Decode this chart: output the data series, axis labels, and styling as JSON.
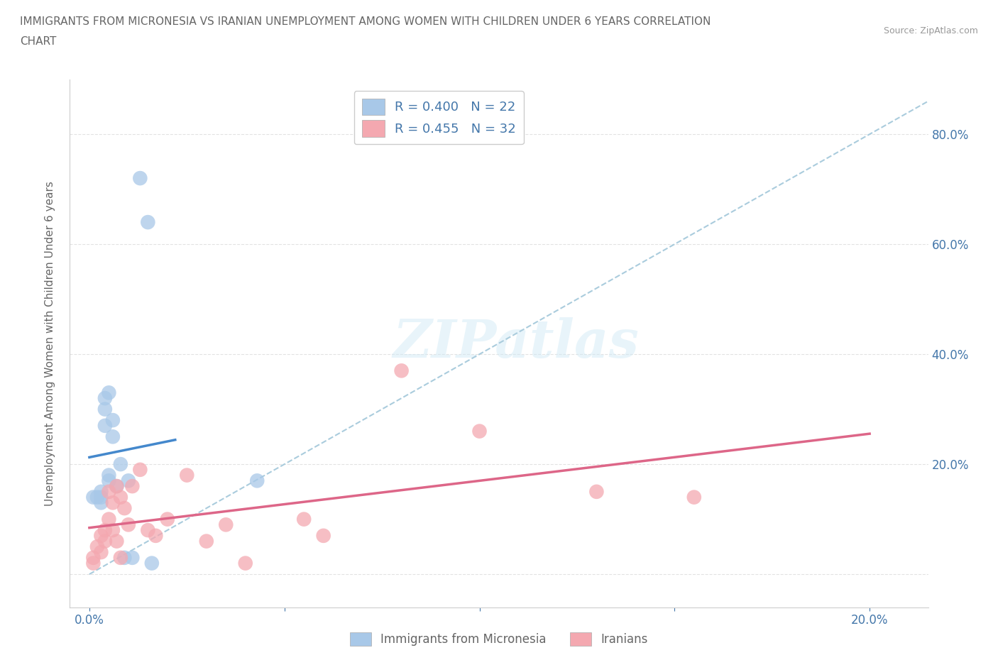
{
  "title_line1": "IMMIGRANTS FROM MICRONESIA VS IRANIAN UNEMPLOYMENT AMONG WOMEN WITH CHILDREN UNDER 6 YEARS CORRELATION",
  "title_line2": "CHART",
  "source": "Source: ZipAtlas.com",
  "watermark": "ZIPatlas",
  "ylabel": "Unemployment Among Women with Children Under 6 years",
  "xticks": [
    0.0,
    0.05,
    0.1,
    0.15,
    0.2
  ],
  "xticklabels": [
    "0.0%",
    "",
    "",
    "",
    "20.0%"
  ],
  "yticks": [
    0.0,
    0.2,
    0.4,
    0.6,
    0.8
  ],
  "yticklabels_right": [
    "",
    "20.0%",
    "40.0%",
    "60.0%",
    "80.0%"
  ],
  "xlim": [
    -0.005,
    0.215
  ],
  "ylim": [
    -0.06,
    0.9
  ],
  "blue_scatter_color": "#a8c8e8",
  "pink_scatter_color": "#f4a8b0",
  "blue_line_color": "#4488cc",
  "pink_line_color": "#dd6688",
  "dashed_line_color": "#aaccdd",
  "grid_color": "#dddddd",
  "title_color": "#666666",
  "axis_tick_color": "#4477aa",
  "R_blue": 0.4,
  "N_blue": 22,
  "R_pink": 0.455,
  "N_pink": 32,
  "blue_scatter_x": [
    0.001,
    0.002,
    0.003,
    0.003,
    0.003,
    0.004,
    0.004,
    0.004,
    0.005,
    0.005,
    0.005,
    0.006,
    0.006,
    0.007,
    0.008,
    0.009,
    0.01,
    0.011,
    0.013,
    0.015,
    0.016,
    0.043
  ],
  "blue_scatter_y": [
    0.14,
    0.14,
    0.13,
    0.15,
    0.14,
    0.27,
    0.3,
    0.32,
    0.18,
    0.33,
    0.17,
    0.25,
    0.28,
    0.16,
    0.2,
    0.03,
    0.17,
    0.03,
    0.72,
    0.64,
    0.02,
    0.17
  ],
  "pink_scatter_x": [
    0.001,
    0.001,
    0.002,
    0.003,
    0.003,
    0.004,
    0.004,
    0.005,
    0.005,
    0.006,
    0.006,
    0.007,
    0.007,
    0.008,
    0.008,
    0.009,
    0.01,
    0.011,
    0.013,
    0.015,
    0.017,
    0.02,
    0.025,
    0.03,
    0.035,
    0.04,
    0.055,
    0.06,
    0.08,
    0.1,
    0.13,
    0.155
  ],
  "pink_scatter_y": [
    0.03,
    0.02,
    0.05,
    0.07,
    0.04,
    0.08,
    0.06,
    0.15,
    0.1,
    0.13,
    0.08,
    0.16,
    0.06,
    0.14,
    0.03,
    0.12,
    0.09,
    0.16,
    0.19,
    0.08,
    0.07,
    0.1,
    0.18,
    0.06,
    0.09,
    0.02,
    0.1,
    0.07,
    0.37,
    0.26,
    0.15,
    0.14
  ],
  "legend_color": "#4477aa",
  "bottom_legend_items": [
    "Immigrants from Micronesia",
    "Iranians"
  ],
  "bottom_legend_colors": [
    "#a8c8e8",
    "#f4a8b0"
  ]
}
